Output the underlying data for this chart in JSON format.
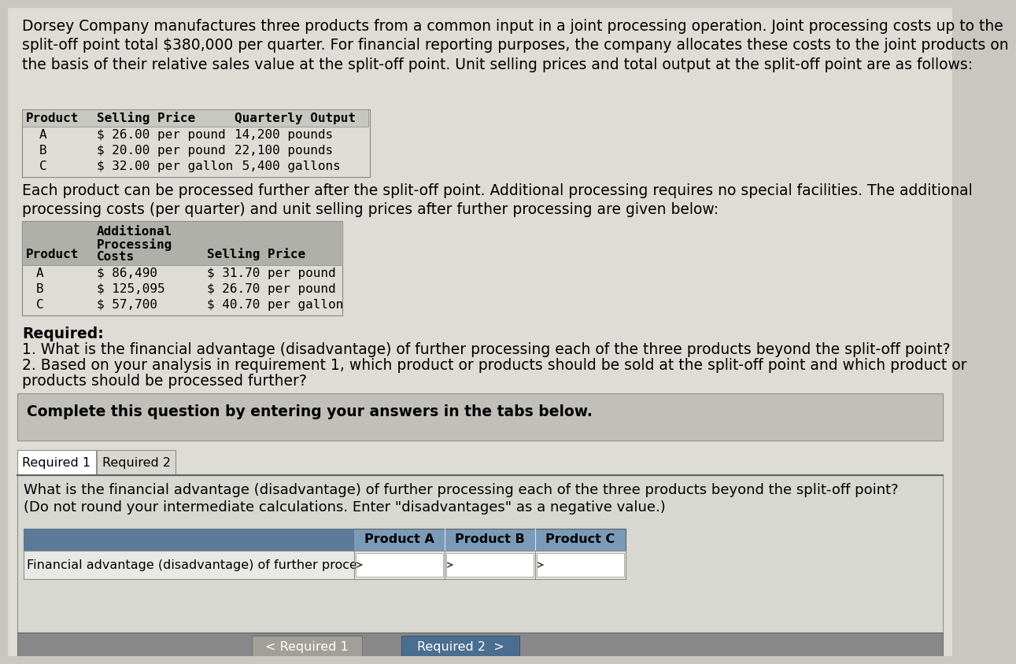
{
  "bg_color": "#c8c7c0",
  "content_bg": "#dddcd5",
  "white": "#ffffff",
  "light_gray_header": "#c8c8c2",
  "table2_header_bg": "#b0b0aa",
  "complete_box_bg": "#c0bfb8",
  "answer_header_bg": "#7a9ab8",
  "answer_row_bg": "#e8e8e4",
  "tabs_area_bg": "#dddcd5",
  "instruction_bg": "#b8c4ce",
  "bottom_nav_bg": "#888888",
  "nav_left_bg": "#a0a098",
  "nav_right_bg": "#4a6e90",
  "para1": "Dorsey Company manufactures three products from a common input in a joint processing operation. Joint processing costs up to the\nsplit-off point total $380,000 per quarter. For financial reporting purposes, the company allocates these costs to the joint products on\nthe basis of their relative sales value at the split-off point. Unit selling prices and total output at the split-off point are as follows:",
  "table1_headers": [
    "Product",
    "Selling Price",
    "Quarterly Output"
  ],
  "table1_rows": [
    [
      "A",
      "$ 26.00 per pound",
      "14,200 pounds"
    ],
    [
      "B",
      "$ 20.00 per pound",
      "22,100 pounds"
    ],
    [
      "C",
      "$ 32.00 per gallon",
      " 5,400 gallons"
    ]
  ],
  "para2": "Each product can be processed further after the split-off point. Additional processing requires no special facilities. The additional\nprocessing costs (per quarter) and unit selling prices after further processing are given below:",
  "table2_col1_header": "Product",
  "table2_col2_header": [
    "Additional",
    "Processing",
    "Costs"
  ],
  "table2_col3_header": "Selling Price",
  "table2_rows": [
    [
      "A",
      "$ 86,490",
      "$ 31.70 per pound"
    ],
    [
      "B",
      "$ 125,095",
      "$ 26.70 per pound"
    ],
    [
      "C",
      "$ 57,700",
      "$ 40.70 per gallon"
    ]
  ],
  "required_label": "Required:",
  "required_items": [
    "1. What is the financial advantage (disadvantage) of further processing each of the three products beyond the split-off point?",
    "2. Based on your analysis in requirement 1, which product or products should be sold at the split-off point and which product or",
    "products should be processed further?"
  ],
  "complete_text": "Complete this question by entering your answers in the tabs below.",
  "tab1": "Required 1",
  "tab2": "Required 2",
  "instruction_line1": "What is the financial advantage (disadvantage) of further processing each of the three products beyond the split-off point?",
  "instruction_line2": "(Do not round your intermediate calculations. Enter \"disadvantages\" as a negative value.)",
  "answer_header": "Financial advantage (disadvantage) of further processing",
  "answer_cols": [
    "Product A",
    "Product B",
    "Product C"
  ],
  "nav_left": "< Required 1",
  "nav_right": "Required 2  >",
  "font_size_body": 13.5,
  "font_size_small": 11.5,
  "font_size_mono": 11.5,
  "font_size_bold": 13.5
}
